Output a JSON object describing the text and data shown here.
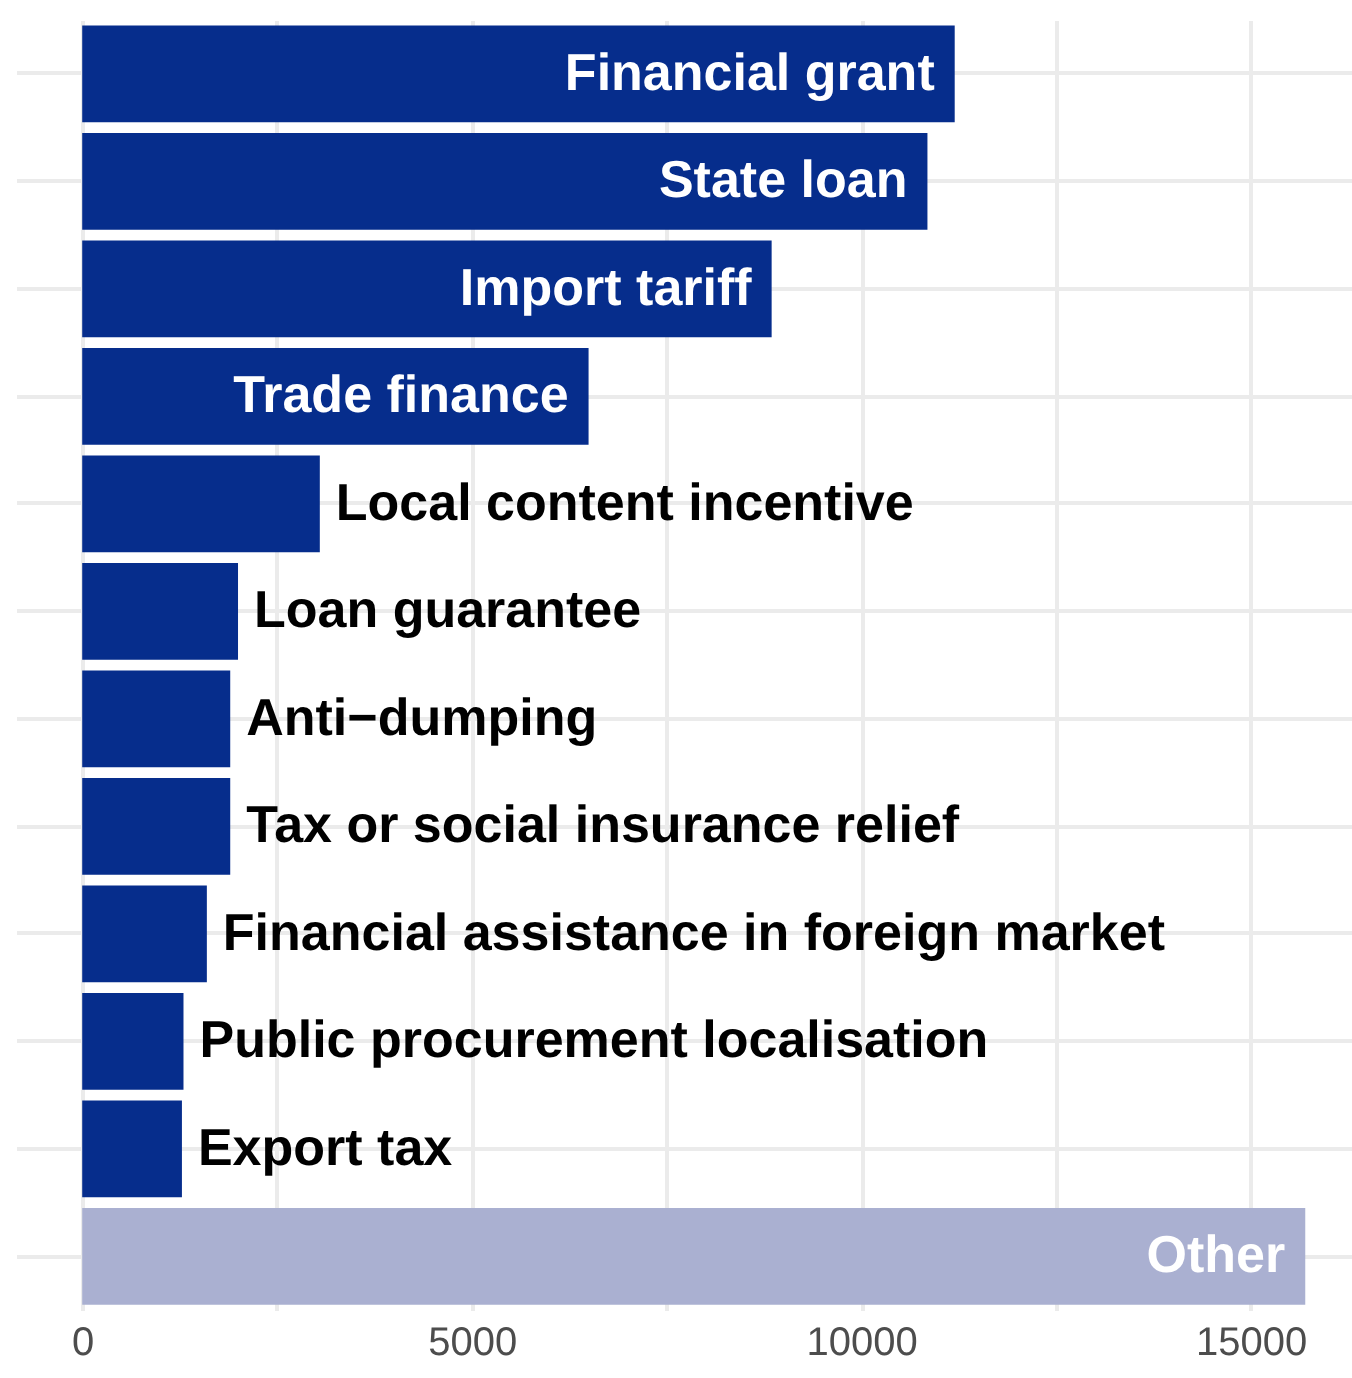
{
  "chart_data": {
    "type": "bar",
    "orientation": "horizontal",
    "categories": [
      "Financial grant",
      "State loan",
      "Import tariff",
      "Trade finance",
      "Local content incentive",
      "Loan guarantee",
      "Anti−dumping",
      "Tax or social insurance relief",
      "Financial assistance in foreign market",
      "Public procurement localisation",
      "Export tax",
      "Other"
    ],
    "values": [
      11200,
      10850,
      8850,
      6500,
      3050,
      2000,
      1900,
      1900,
      1600,
      1300,
      1280,
      15700
    ],
    "colors": [
      "#062d8c",
      "#062d8c",
      "#062d8c",
      "#062d8c",
      "#062d8c",
      "#062d8c",
      "#062d8c",
      "#062d8c",
      "#062d8c",
      "#062d8c",
      "#062d8c",
      "#aab0d1"
    ],
    "xlim": [
      -850,
      16300
    ],
    "xticks": [
      0,
      {
        "value": 2500,
        "label": null
      },
      5000,
      {
        "value": 7500,
        "label": null
      },
      10000,
      {
        "value": 12500,
        "label": null
      },
      15000
    ],
    "grid": true,
    "tick_labels": "x"
  }
}
